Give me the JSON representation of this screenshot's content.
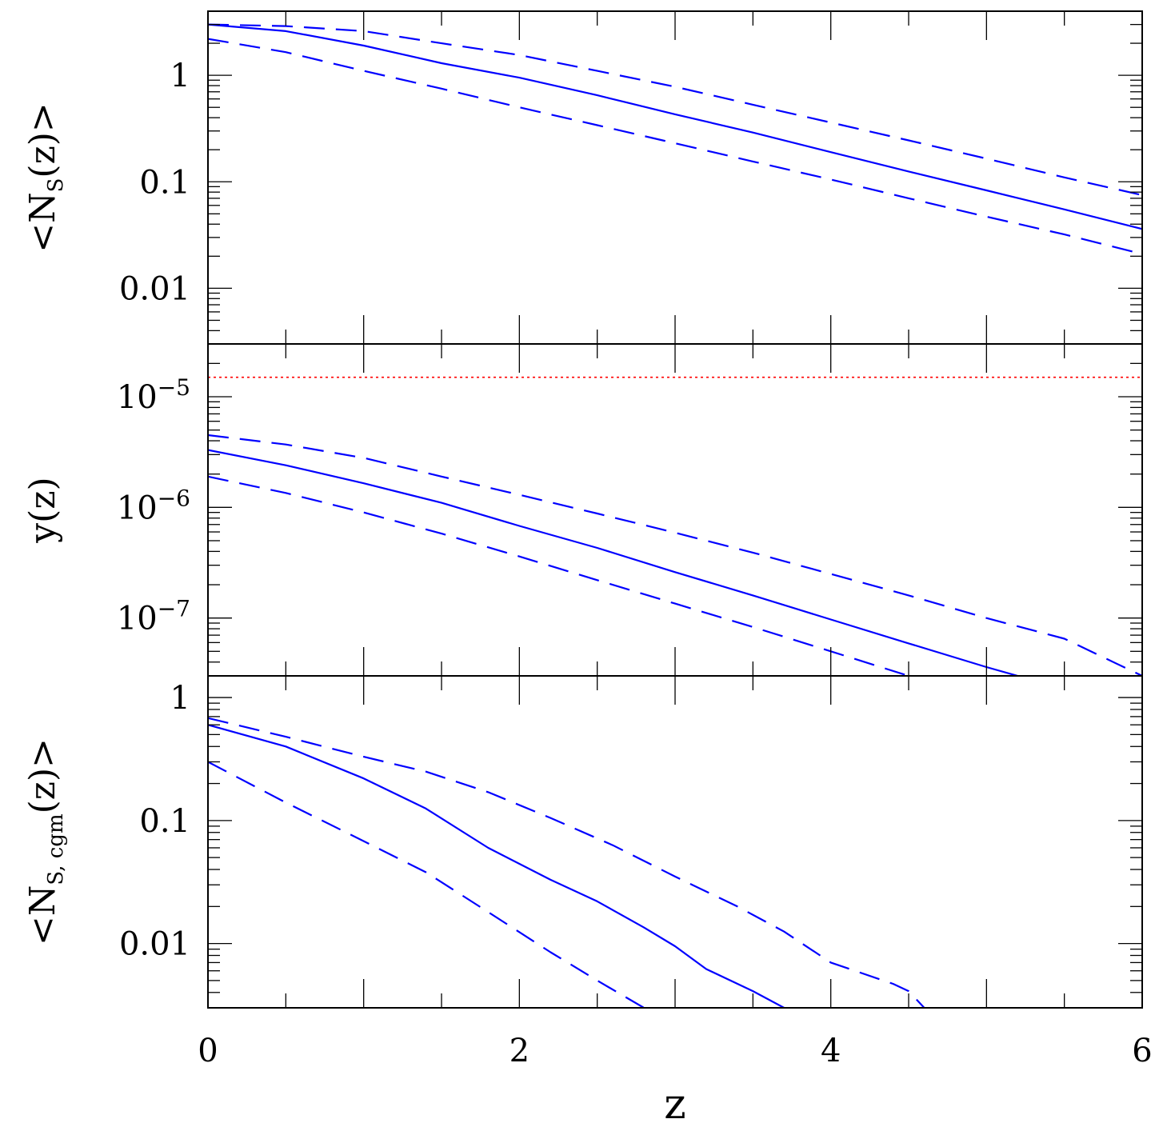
{
  "chart_data": [
    {
      "type": "line",
      "panel": "top",
      "ylabel": "<N_S(z)>",
      "ylabel_parts": {
        "open": "<N",
        "sub": "S",
        "close": "(z)>"
      },
      "yscale": "log",
      "ylim": [
        0.003,
        4.0
      ],
      "xlim": [
        0,
        6
      ],
      "ytick_labels": [
        {
          "value": 1,
          "text": "1"
        },
        {
          "value": 0.1,
          "text": "0.1"
        },
        {
          "value": 0.01,
          "text": "0.01"
        }
      ],
      "series": [
        {
          "style": "solid",
          "color": "#0000ff",
          "x": [
            0.0,
            0.5,
            1.0,
            1.5,
            2.0,
            2.5,
            3.0,
            3.5,
            4.0,
            4.5,
            5.0,
            5.5,
            6.0
          ],
          "y": [
            3.0,
            2.6,
            1.9,
            1.3,
            0.95,
            0.65,
            0.43,
            0.29,
            0.19,
            0.125,
            0.083,
            0.055,
            0.036
          ]
        },
        {
          "style": "dashed",
          "color": "#0000ff",
          "x": [
            0.0,
            0.5,
            1.0,
            1.5,
            2.0,
            2.5,
            3.0,
            3.5,
            4.0,
            4.5,
            5.0,
            5.5,
            6.0
          ],
          "y": [
            3.0,
            2.9,
            2.6,
            2.0,
            1.55,
            1.1,
            0.78,
            0.53,
            0.36,
            0.245,
            0.165,
            0.11,
            0.075
          ]
        },
        {
          "style": "dashed",
          "color": "#0000ff",
          "x": [
            0.0,
            0.5,
            1.0,
            1.5,
            2.0,
            2.5,
            3.0,
            3.5,
            4.0,
            4.5,
            5.0,
            5.5,
            6.0
          ],
          "y": [
            2.2,
            1.65,
            1.1,
            0.75,
            0.5,
            0.34,
            0.23,
            0.155,
            0.105,
            0.07,
            0.047,
            0.032,
            0.021
          ]
        }
      ]
    },
    {
      "type": "line",
      "panel": "middle",
      "ylabel": "y(z)",
      "yscale": "log",
      "ylim": [
        3e-08,
        3e-05
      ],
      "xlim": [
        0,
        6
      ],
      "ytick_labels": [
        {
          "value": 1e-05,
          "base": "10",
          "exp": "−5"
        },
        {
          "value": 1e-06,
          "base": "10",
          "exp": "−6"
        },
        {
          "value": 1e-07,
          "base": "10",
          "exp": "−7"
        }
      ],
      "reference_line": {
        "y": 1.5e-05,
        "style": "dotted",
        "color": "#ff0000"
      },
      "series": [
        {
          "style": "solid",
          "color": "#0000ff",
          "x": [
            0.0,
            0.5,
            1.0,
            1.5,
            2.0,
            2.5,
            3.0,
            3.5,
            4.0,
            4.5,
            5.0,
            5.2
          ],
          "y": [
            3.3e-06,
            2.4e-06,
            1.65e-06,
            1.1e-06,
            6.8e-07,
            4.3e-07,
            2.6e-07,
            1.6e-07,
            9.7e-08,
            5.9e-08,
            3.6e-08,
            3e-08
          ]
        },
        {
          "style": "dashed",
          "color": "#0000ff",
          "x": [
            0.0,
            0.5,
            1.0,
            1.5,
            2.0,
            2.5,
            3.0,
            3.5,
            4.0,
            4.5,
            5.0,
            5.5,
            6.0
          ],
          "y": [
            4.5e-06,
            3.7e-06,
            2.8e-06,
            1.9e-06,
            1.3e-06,
            8.8e-07,
            5.9e-07,
            3.9e-07,
            2.5e-07,
            1.6e-07,
            1e-07,
            6.5e-08,
            3e-08
          ]
        },
        {
          "style": "dashed",
          "color": "#0000ff",
          "x": [
            0.0,
            0.5,
            1.0,
            1.5,
            2.0,
            2.5,
            3.0,
            3.5,
            4.0,
            4.5
          ],
          "y": [
            1.9e-06,
            1.35e-06,
            9e-07,
            5.8e-07,
            3.6e-07,
            2.2e-07,
            1.35e-07,
            8.3e-08,
            5e-08,
            3e-08
          ]
        }
      ]
    },
    {
      "type": "line",
      "panel": "bottom",
      "ylabel": "<N_S, cgm(z)>",
      "ylabel_parts": {
        "open": "<N",
        "sub": "S, cgm",
        "close": "(z)>"
      },
      "yscale": "log",
      "ylim": [
        0.003,
        1.5
      ],
      "xlim": [
        0,
        6
      ],
      "xlabel": "z",
      "xtick_labels": [
        {
          "value": 0,
          "text": "0"
        },
        {
          "value": 2,
          "text": "2"
        },
        {
          "value": 4,
          "text": "4"
        },
        {
          "value": 6,
          "text": "6"
        }
      ],
      "ytick_labels": [
        {
          "value": 1,
          "text": "1"
        },
        {
          "value": 0.1,
          "text": "0.1"
        },
        {
          "value": 0.01,
          "text": "0.01"
        }
      ],
      "series": [
        {
          "style": "solid",
          "color": "#0000ff",
          "x": [
            0.0,
            0.5,
            1.0,
            1.4,
            1.8,
            2.2,
            2.5,
            2.8,
            3.0,
            3.2,
            3.5,
            3.7
          ],
          "y": [
            0.6,
            0.4,
            0.22,
            0.125,
            0.06,
            0.033,
            0.022,
            0.0135,
            0.0095,
            0.0062,
            0.0041,
            0.003
          ]
        },
        {
          "style": "dashed",
          "color": "#0000ff",
          "x": [
            0.0,
            0.5,
            1.0,
            1.4,
            1.8,
            2.2,
            2.6,
            3.0,
            3.4,
            3.7,
            4.0,
            4.4,
            4.5,
            4.6
          ],
          "y": [
            0.68,
            0.48,
            0.33,
            0.25,
            0.17,
            0.105,
            0.063,
            0.035,
            0.02,
            0.0125,
            0.007,
            0.0047,
            0.0041,
            0.003
          ]
        },
        {
          "style": "dashed",
          "color": "#0000ff",
          "x": [
            0.0,
            0.5,
            1.0,
            1.4,
            1.8,
            2.2,
            2.5,
            2.8
          ],
          "y": [
            0.3,
            0.14,
            0.068,
            0.038,
            0.018,
            0.0085,
            0.005,
            0.003
          ]
        }
      ]
    }
  ]
}
